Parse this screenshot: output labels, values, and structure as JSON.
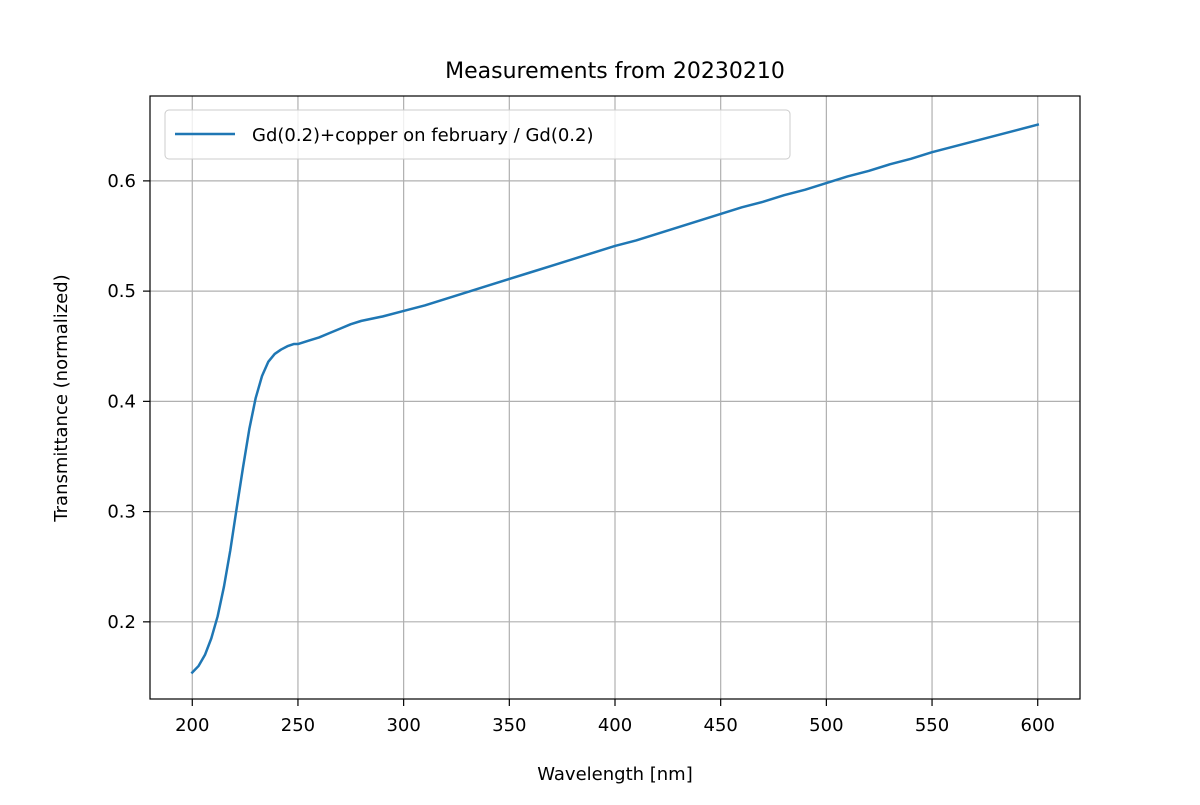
{
  "chart_data": {
    "type": "line",
    "title": "Measurements from 20230210",
    "xlabel": "Wavelength [nm]",
    "ylabel": "Transmittance (normalized)",
    "xlim": [
      180,
      620
    ],
    "ylim": [
      0.13,
      0.677
    ],
    "xticks": [
      200,
      250,
      300,
      350,
      400,
      450,
      500,
      550,
      600
    ],
    "yticks": [
      0.2,
      0.3,
      0.4,
      0.5,
      0.6
    ],
    "xtick_labels": [
      "200",
      "250",
      "300",
      "350",
      "400",
      "450",
      "500",
      "550",
      "600"
    ],
    "ytick_labels": [
      "0.2",
      "0.3",
      "0.4",
      "0.5",
      "0.6"
    ],
    "grid": true,
    "legend_position": "upper-left",
    "series": [
      {
        "name": "Gd(0.2)+copper on february / Gd(0.2)",
        "color": "#1f77b4",
        "x": [
          200,
          203,
          206,
          209,
          212,
          215,
          218,
          221,
          224,
          227,
          230,
          233,
          236,
          239,
          242,
          245,
          248,
          250,
          255,
          260,
          265,
          270,
          275,
          280,
          290,
          300,
          310,
          320,
          330,
          340,
          350,
          360,
          370,
          380,
          390,
          400,
          410,
          420,
          430,
          440,
          450,
          460,
          470,
          480,
          490,
          500,
          510,
          520,
          530,
          540,
          550,
          560,
          570,
          580,
          590,
          600
        ],
        "y": [
          0.154,
          0.16,
          0.17,
          0.185,
          0.205,
          0.232,
          0.265,
          0.303,
          0.34,
          0.375,
          0.403,
          0.423,
          0.436,
          0.443,
          0.447,
          0.45,
          0.452,
          0.452,
          0.455,
          0.458,
          0.462,
          0.466,
          0.47,
          0.473,
          0.477,
          0.482,
          0.487,
          0.493,
          0.499,
          0.505,
          0.511,
          0.517,
          0.523,
          0.529,
          0.535,
          0.541,
          0.546,
          0.552,
          0.558,
          0.564,
          0.57,
          0.576,
          0.581,
          0.587,
          0.592,
          0.598,
          0.604,
          0.609,
          0.615,
          0.62,
          0.626,
          0.631,
          0.636,
          0.641,
          0.646,
          0.651
        ]
      }
    ]
  }
}
